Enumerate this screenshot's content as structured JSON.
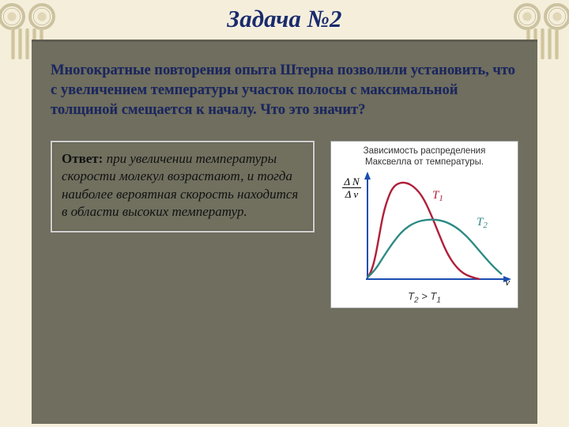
{
  "title": "Задача №2",
  "question": "Многократные повторения опыта Штерна позволили установить, что с увеличением температуры участок полосы с максимальной толщиной смещается к началу. Что это значит?",
  "answer": {
    "lead": "Ответ:",
    "body": " при увеличении температуры скорости молекул возрастают, и тогда наиболее вероятная скорость находится в области высоких температур."
  },
  "chart": {
    "title_line1": "Зависимость распределения",
    "title_line2": "Максвелла от температуры.",
    "y_label_top": "Δ N",
    "y_label_bot": "Δ v",
    "x_label": "v",
    "series_T1": {
      "label": "T1",
      "color": "#b0203a",
      "points": [
        [
          40,
          136
        ],
        [
          45,
          128
        ],
        [
          50,
          110
        ],
        [
          55,
          82
        ],
        [
          60,
          55
        ],
        [
          66,
          35
        ],
        [
          72,
          22
        ],
        [
          80,
          16
        ],
        [
          90,
          16
        ],
        [
          100,
          22
        ],
        [
          110,
          34
        ],
        [
          120,
          55
        ],
        [
          130,
          80
        ],
        [
          140,
          104
        ],
        [
          150,
          120
        ],
        [
          160,
          130
        ],
        [
          170,
          135
        ],
        [
          182,
          138
        ]
      ],
      "label_pos": [
        122,
        36
      ]
    },
    "series_T2": {
      "label": "T2",
      "color": "#2d8a84",
      "points": [
        [
          40,
          136
        ],
        [
          50,
          126
        ],
        [
          60,
          110
        ],
        [
          72,
          92
        ],
        [
          85,
          76
        ],
        [
          100,
          66
        ],
        [
          118,
          62
        ],
        [
          136,
          64
        ],
        [
          152,
          72
        ],
        [
          166,
          84
        ],
        [
          178,
          98
        ],
        [
          190,
          112
        ],
        [
          200,
          123
        ],
        [
          210,
          132
        ]
      ],
      "label_pos": [
        178,
        70
      ]
    },
    "axis_color": "#1a4db0",
    "caption": "T2 > T1",
    "background": "#ffffff"
  }
}
